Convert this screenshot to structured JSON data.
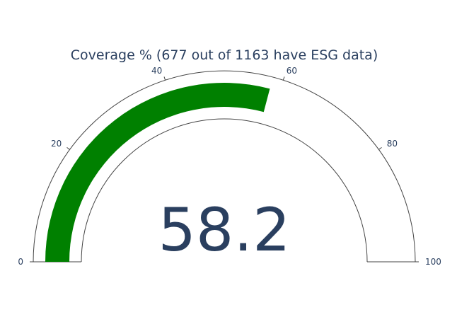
{
  "chart_data": {
    "type": "gauge",
    "title": "Coverage % (677 out of 1163 have ESG data)",
    "value": 58.2,
    "value_label": "58.2",
    "range": [
      0,
      100
    ],
    "ticks": [
      0,
      20,
      40,
      60,
      80,
      100
    ],
    "tick_labels": [
      "0",
      "20",
      "40",
      "60",
      "80",
      "100"
    ],
    "bar_color": "#008000",
    "outline_color": "#444444",
    "text_color": "#2a3f5f",
    "grid": false
  }
}
